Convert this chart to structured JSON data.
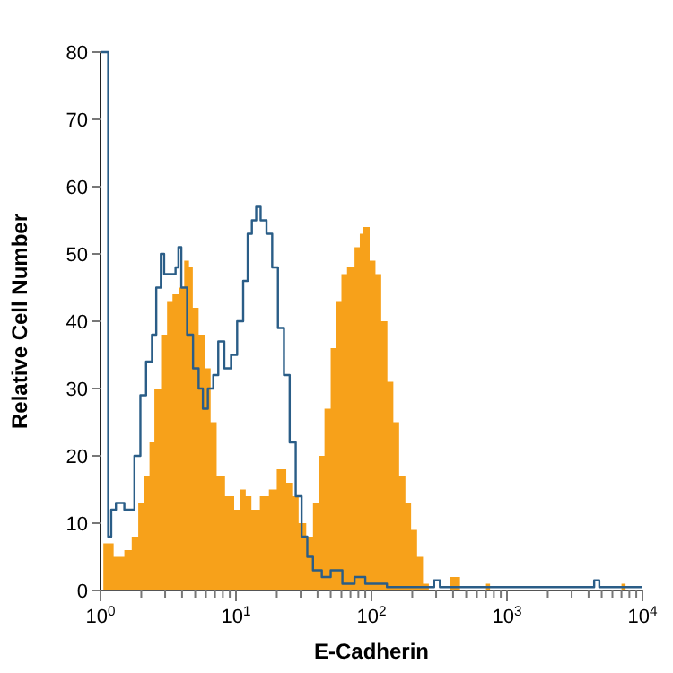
{
  "chart_data": {
    "type": "area",
    "xlabel": "E-Cadherin",
    "ylabel": "Relative Cell Number",
    "log": "x",
    "xlim": [
      1,
      10000
    ],
    "ylim": [
      0,
      80
    ],
    "xticks": [
      {
        "value": 1,
        "label": "10$^{0}$"
      },
      {
        "value": 2,
        "label": null
      },
      {
        "value": 3,
        "label": null
      },
      {
        "value": 4,
        "label": null
      },
      {
        "value": 5,
        "label": null
      },
      {
        "value": 6,
        "label": null
      },
      {
        "value": 7,
        "label": null
      },
      {
        "value": 8,
        "label": null
      },
      {
        "value": 9,
        "label": null
      },
      {
        "value": 10,
        "label": "10$^{1}$"
      },
      {
        "value": 20,
        "label": null
      },
      {
        "value": 30,
        "label": null
      },
      {
        "value": 40,
        "label": null
      },
      {
        "value": 50,
        "label": null
      },
      {
        "value": 60,
        "label": null
      },
      {
        "value": 70,
        "label": null
      },
      {
        "value": 80,
        "label": null
      },
      {
        "value": 90,
        "label": null
      },
      {
        "value": 100,
        "label": "10$^{2}$"
      },
      {
        "value": 200,
        "label": null
      },
      {
        "value": 300,
        "label": null
      },
      {
        "value": 400,
        "label": null
      },
      {
        "value": 500,
        "label": null
      },
      {
        "value": 600,
        "label": null
      },
      {
        "value": 700,
        "label": null
      },
      {
        "value": 800,
        "label": null
      },
      {
        "value": 900,
        "label": null
      },
      {
        "value": 1000,
        "label": "10$^{3}$"
      },
      {
        "value": 2000,
        "label": null
      },
      {
        "value": 3000,
        "label": null
      },
      {
        "value": 4000,
        "label": null
      },
      {
        "value": 5000,
        "label": null
      },
      {
        "value": 6000,
        "label": null
      },
      {
        "value": 7000,
        "label": null
      },
      {
        "value": 8000,
        "label": null
      },
      {
        "value": 9000,
        "label": null
      },
      {
        "value": 10000,
        "label": "10$^{4}$"
      }
    ],
    "yticks": [
      0,
      10,
      20,
      30,
      40,
      50,
      60,
      70,
      80
    ],
    "grid": false,
    "series": [
      {
        "color": "#f7a11a",
        "x": [
          1.05,
          1.25,
          1.5,
          1.7,
          1.9,
          2.1,
          2.3,
          2.5,
          2.8,
          3.1,
          3.4,
          3.8,
          4.15,
          4.5,
          4.8,
          5.3,
          5.9,
          6.5,
          7.2,
          8.3,
          9.7,
          10.7,
          11.8,
          13,
          15,
          17.5,
          20,
          23.5,
          26,
          29,
          33,
          37,
          41,
          45,
          50,
          55,
          60,
          66,
          75,
          82,
          87,
          97,
          107,
          118,
          131,
          145,
          160,
          178,
          196,
          217,
          240,
          265,
          380,
          420,
          450,
          700,
          750,
          7000,
          7500,
          10000
        ],
        "values": [
          7,
          5,
          6,
          8,
          13,
          17,
          22,
          30,
          38,
          43,
          44,
          45,
          49,
          48,
          42,
          38,
          33,
          25,
          17,
          14,
          12,
          15,
          14,
          12,
          14,
          15,
          18,
          16,
          14,
          10,
          8,
          13,
          20,
          27,
          36,
          43,
          47,
          48,
          51,
          53,
          54,
          49,
          47,
          40,
          31,
          25,
          17,
          13,
          9,
          5,
          1,
          0,
          2,
          2,
          0,
          1,
          0,
          1,
          0,
          0
        ]
      },
      {
        "type": "step",
        "color": "#2a5d87",
        "x": [
          1,
          1.14,
          1.2,
          1.3,
          1.5,
          1.78,
          1.97,
          2.17,
          2.4,
          2.58,
          2.79,
          2.95,
          3.24,
          3.58,
          3.76,
          3.95,
          4.36,
          4.82,
          5.3,
          5.7,
          6.2,
          6.8,
          7.4,
          8.2,
          9.2,
          10.2,
          11.3,
          12.2,
          13.1,
          14.1,
          15.2,
          16.8,
          18.5,
          20.4,
          22.6,
          24.9,
          27.6,
          30.5,
          33.6,
          37,
          43,
          50,
          61,
          75,
          90,
          110,
          130,
          280,
          290,
          320,
          4200,
          4400,
          4800,
          10000
        ],
        "values": [
          80,
          8,
          12,
          13,
          12,
          20,
          29,
          34,
          38,
          45,
          50,
          47,
          47,
          48,
          51,
          45,
          38,
          33,
          30,
          27,
          30,
          32,
          37,
          33,
          35,
          40,
          46,
          53,
          55,
          57,
          55,
          53,
          48,
          39,
          32,
          22,
          14,
          8,
          5,
          3,
          2,
          3,
          1,
          2,
          1,
          1,
          0.5,
          0.5,
          1.5,
          0.5,
          0.5,
          1.5,
          0.5,
          0.5
        ]
      }
    ]
  }
}
